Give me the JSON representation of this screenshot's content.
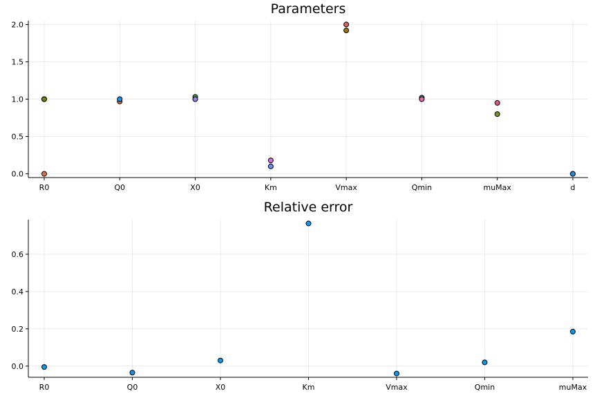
{
  "chart_data": [
    {
      "type": "scatter",
      "title": "Parameters",
      "categories": [
        "R0",
        "Q0",
        "X0",
        "Km",
        "Vmax",
        "Qmin",
        "muMax",
        "d"
      ],
      "ylim": [
        -0.05,
        2.05
      ],
      "yticks": [
        0.0,
        0.5,
        1.0,
        1.5,
        2.0
      ],
      "ytick_labels": [
        "0.0",
        "0.5",
        "1.0",
        "1.5",
        "2.0"
      ],
      "grid": true,
      "legend": "none",
      "points": [
        {
          "category": "R0",
          "value": 1.0,
          "color": "#c68125"
        },
        {
          "category": "R0",
          "value": 1.0,
          "color": "#808000"
        },
        {
          "category": "R0",
          "value": 0.0,
          "color": "#e26f46"
        },
        {
          "category": "Q0",
          "value": 0.97,
          "color": "#e26f46"
        },
        {
          "category": "Q0",
          "value": 1.0,
          "color": "#009af9"
        },
        {
          "category": "X0",
          "value": 1.03,
          "color": "#3ea44e"
        },
        {
          "category": "X0",
          "value": 1.0,
          "color": "#9b7fe8"
        },
        {
          "category": "Km",
          "value": 0.18,
          "color": "#d86edb"
        },
        {
          "category": "Km",
          "value": 0.1,
          "color": "#6b8cf5"
        },
        {
          "category": "Vmax",
          "value": 2.0,
          "color": "#e15d63"
        },
        {
          "category": "Vmax",
          "value": 1.92,
          "color": "#9a7a00"
        },
        {
          "category": "Qmin",
          "value": 1.02,
          "color": "#00a9ad"
        },
        {
          "category": "Qmin",
          "value": 1.0,
          "color": "#e26ba8"
        },
        {
          "category": "muMax",
          "value": 0.95,
          "color": "#e05a7a"
        },
        {
          "category": "muMax",
          "value": 0.8,
          "color": "#6d9a14"
        },
        {
          "category": "d",
          "value": 0.0,
          "color": "#17a4b4"
        },
        {
          "category": "d",
          "value": 0.0,
          "color": "#1a8fe8"
        }
      ]
    },
    {
      "type": "scatter",
      "title": "Relative error",
      "categories": [
        "R0",
        "Q0",
        "X0",
        "Km",
        "Vmax",
        "Qmin",
        "muMax"
      ],
      "values": [
        -0.005,
        -0.035,
        0.03,
        0.765,
        -0.04,
        0.02,
        0.185
      ],
      "ylim": [
        -0.06,
        0.785
      ],
      "yticks": [
        0.0,
        0.2,
        0.4,
        0.6
      ],
      "ytick_labels": [
        "0.0",
        "0.2",
        "0.4",
        "0.6"
      ],
      "grid": true,
      "legend": "none",
      "color": "#009af9"
    }
  ]
}
